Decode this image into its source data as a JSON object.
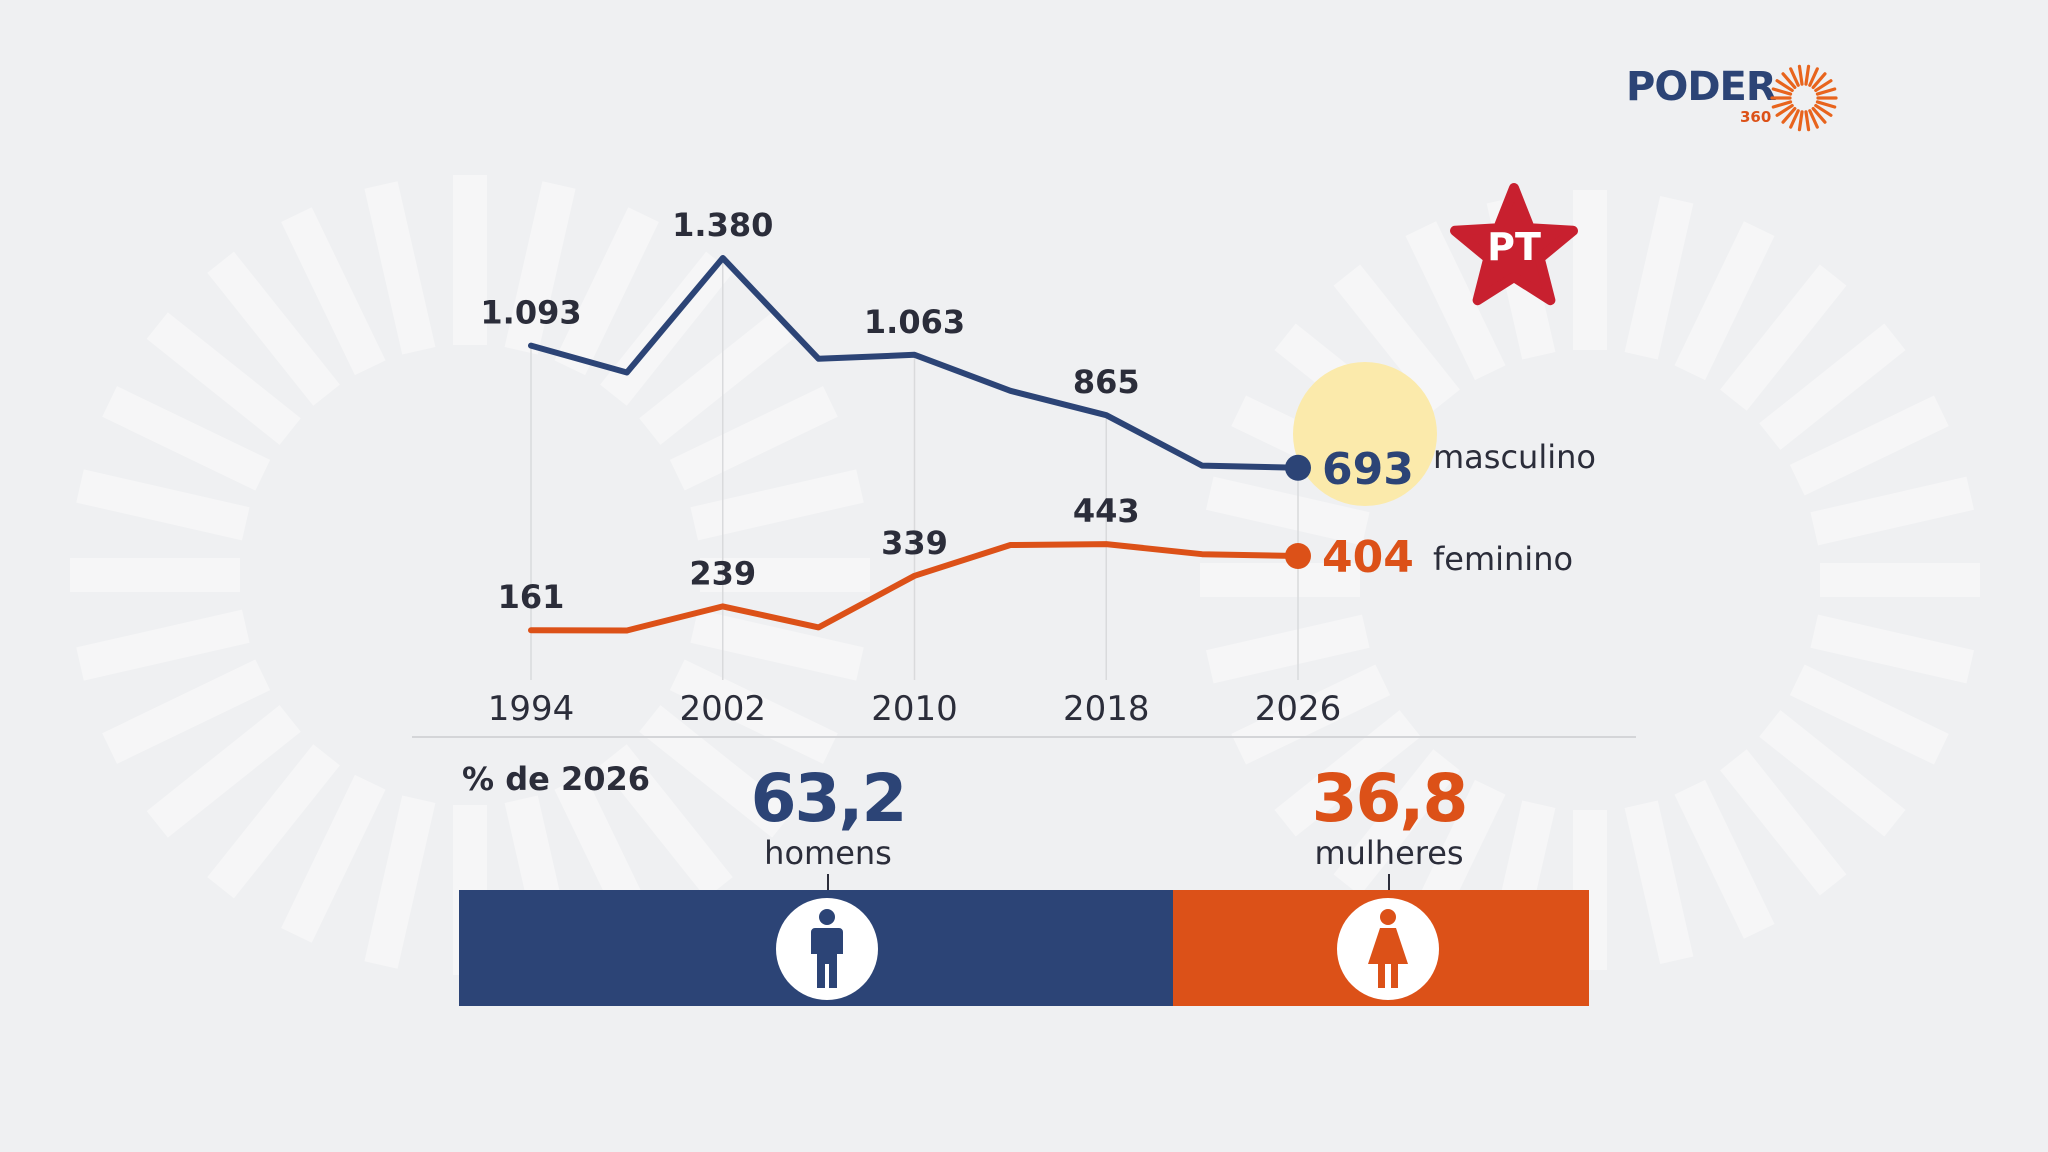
{
  "brand": {
    "name": "PODER",
    "number": "360"
  },
  "party_logo": {
    "text": "PT",
    "color": "#c8202f"
  },
  "colors": {
    "men": "#2c4476",
    "women": "#dc5118",
    "highlight": "#fbeaab",
    "background": "#eff0f2"
  },
  "chart_data": {
    "type": "line",
    "x": [
      1994,
      1998,
      2002,
      2006,
      2010,
      2014,
      2018,
      2022,
      2026
    ],
    "x_ticks": [
      "1994",
      "2002",
      "2010",
      "2018",
      "2026"
    ],
    "series": [
      {
        "name": "masculino",
        "values": [
          1093,
          1005,
          1380,
          1050,
          1063,
          945,
          865,
          700,
          693
        ],
        "labels": {
          "1994": "1.093",
          "2002": "1.380",
          "2010": "1.063",
          "2018": "865",
          "2026": "693"
        },
        "color": "#2c4476"
      },
      {
        "name": "feminino",
        "values": [
          161,
          160,
          239,
          170,
          339,
          440,
          443,
          410,
          404
        ],
        "labels": {
          "1994": "161",
          "2002": "239",
          "2010": "339",
          "2018": "443",
          "2026": "404"
        },
        "color": "#dc5118"
      }
    ],
    "title": "",
    "xlabel": "",
    "ylabel": "",
    "grid": "vertical lines at labeled years",
    "highlight": "2026 masculino value circled"
  },
  "share": {
    "heading": "% de 2026",
    "men": {
      "value": 63.2,
      "value_label": "63,2",
      "label": "homens",
      "icon": "man-icon"
    },
    "women": {
      "value": 36.8,
      "value_label": "36,8",
      "label": "mulheres",
      "icon": "woman-icon"
    }
  }
}
